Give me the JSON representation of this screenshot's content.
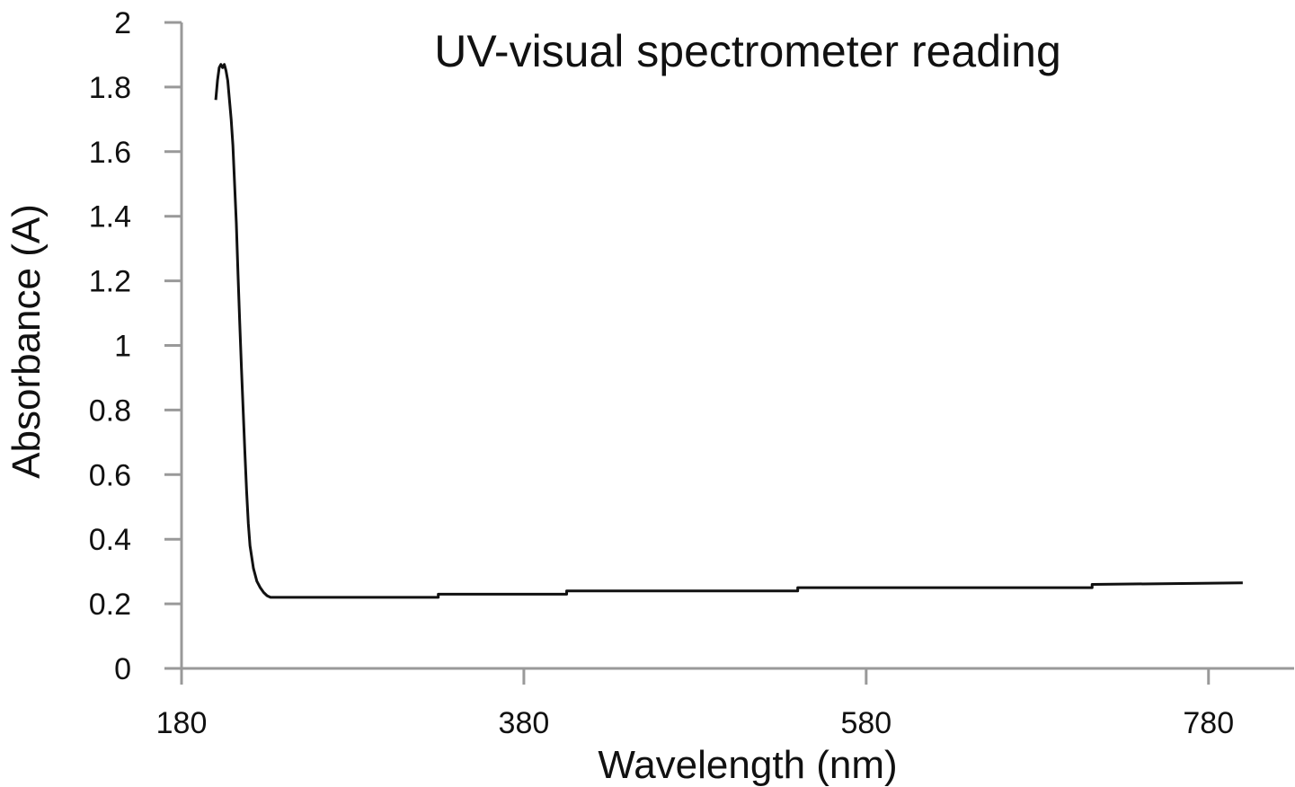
{
  "chart_data": {
    "type": "line",
    "title": "UV-visual spectrometer reading",
    "xlabel": "Wavelength (nm)",
    "ylabel": "Absorbance (A)",
    "xlim": [
      180,
      830
    ],
    "ylim": [
      0,
      2
    ],
    "x_ticks": [
      180,
      380,
      580,
      780
    ],
    "y_ticks": [
      0,
      0.2,
      0.4,
      0.6,
      0.8,
      1,
      1.2,
      1.4,
      1.6,
      1.8,
      2
    ],
    "x_tick_labels": [
      "180",
      "380",
      "580",
      "780"
    ],
    "y_tick_labels": [
      "0",
      "0.2",
      "0.4",
      "0.6",
      "0.8",
      "1",
      "1.2",
      "1.4",
      "1.6",
      "1.8",
      "2"
    ],
    "grid": false,
    "series": [
      {
        "color": "#111111",
        "x": [
          200,
          201,
          202,
          203,
          204,
          205,
          206,
          207,
          208,
          209,
          210,
          212,
          213,
          214,
          215,
          216,
          217,
          218,
          219,
          220,
          222,
          224,
          226,
          228,
          230,
          232,
          234,
          236,
          238,
          240,
          270,
          330,
          330,
          405,
          405,
          540,
          540,
          712,
          712,
          800
        ],
        "y": [
          1.76,
          1.82,
          1.86,
          1.87,
          1.86,
          1.87,
          1.85,
          1.82,
          1.76,
          1.7,
          1.62,
          1.38,
          1.22,
          1.07,
          0.93,
          0.8,
          0.67,
          0.55,
          0.45,
          0.38,
          0.31,
          0.27,
          0.25,
          0.235,
          0.225,
          0.22,
          0.22,
          0.22,
          0.22,
          0.22,
          0.22,
          0.22,
          0.23,
          0.23,
          0.24,
          0.24,
          0.25,
          0.25,
          0.26,
          0.265
        ]
      }
    ]
  }
}
